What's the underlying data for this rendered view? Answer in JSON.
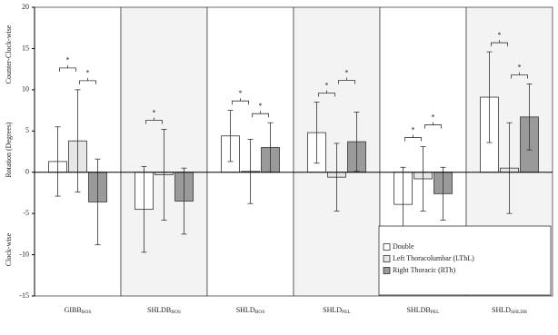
{
  "chart_data": {
    "type": "bar",
    "y_axis_labels": [
      "Counter-Clock-wise",
      "Rotation (Degrees)",
      "Clock-wise"
    ],
    "categories": [
      "GIBB",
      "SHLDB",
      "SHLD",
      "SHLD",
      "SHLDB",
      "SHLD"
    ],
    "category_subscripts": [
      "BOS",
      "BOS",
      "BOS",
      "PEL",
      "PEL",
      "SHLDB"
    ],
    "series": [
      {
        "name": "Double",
        "color": "#ffffff",
        "values": [
          1.3,
          -4.5,
          4.4,
          4.8,
          -3.9,
          9.1
        ],
        "errors": [
          4.2,
          5.2,
          3.1,
          3.7,
          4.5,
          5.5
        ]
      },
      {
        "name": "Left Thoracolumbar (LThL)",
        "color": "#e6e6e6",
        "values": [
          3.8,
          -0.3,
          0.1,
          -0.6,
          -0.8,
          0.5
        ],
        "errors": [
          6.2,
          5.5,
          3.9,
          4.1,
          3.9,
          5.5
        ]
      },
      {
        "name": "Right  Thoracic (RTh)",
        "color": "#9a9a9a",
        "values": [
          -3.6,
          -3.5,
          3.0,
          3.7,
          -2.6,
          6.7
        ],
        "errors": [
          5.2,
          4.0,
          3.0,
          3.6,
          3.2,
          4.0
        ]
      }
    ],
    "significance": [
      {
        "category": 0,
        "series": [
          1,
          2
        ],
        "label": "*"
      },
      {
        "category": 0,
        "series": [
          0,
          1
        ],
        "label": "*"
      },
      {
        "category": 1,
        "series": [
          0,
          1
        ],
        "label": "*"
      },
      {
        "category": 2,
        "series": [
          1,
          2
        ],
        "label": "*"
      },
      {
        "category": 2,
        "series": [
          0,
          1
        ],
        "label": "*"
      },
      {
        "category": 3,
        "series": [
          0,
          1
        ],
        "label": "*"
      },
      {
        "category": 3,
        "series": [
          1,
          2
        ],
        "label": "*"
      },
      {
        "category": 4,
        "series": [
          0,
          1
        ],
        "label": "*"
      },
      {
        "category": 4,
        "series": [
          1,
          2
        ],
        "label": "*"
      },
      {
        "category": 5,
        "series": [
          1,
          2
        ],
        "label": "*"
      },
      {
        "category": 5,
        "series": [
          0,
          1
        ],
        "label": "*"
      }
    ],
    "ylim": [
      -15,
      20
    ],
    "yticks": [
      -15,
      -10,
      -5,
      0,
      5,
      10,
      15,
      20
    ]
  }
}
